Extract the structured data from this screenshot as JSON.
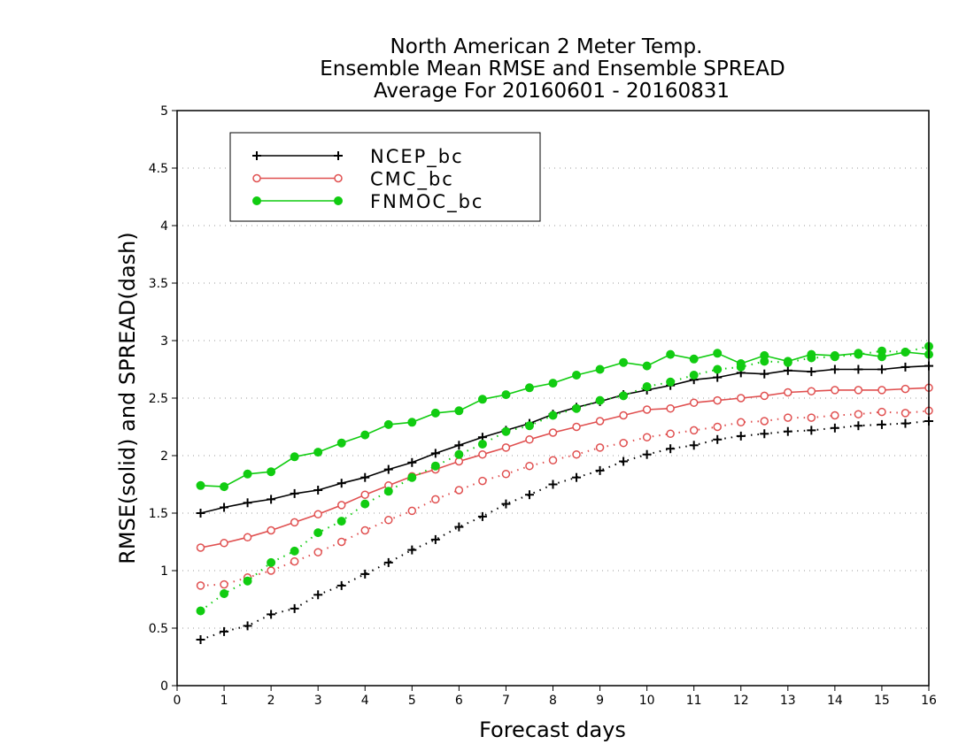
{
  "chart_data": {
    "type": "line",
    "title": [
      "North American 2 Meter Temp.",
      "Ensemble Mean RMSE and Ensemble SPREAD",
      "Average For 20160601 - 20160831"
    ],
    "xlabel": "Forecast days",
    "ylabel": "RMSE(solid) and SPREAD(dash)",
    "xlim": [
      0,
      16
    ],
    "ylim": [
      0,
      5
    ],
    "xticks": [
      "0",
      "1",
      "2",
      "3",
      "4",
      "5",
      "6",
      "7",
      "8",
      "9",
      "10",
      "11",
      "12",
      "13",
      "14",
      "15",
      "16"
    ],
    "yticks": [
      "0",
      "0.5",
      "1",
      "1.5",
      "2",
      "2.5",
      "3",
      "3.5",
      "4",
      "4.5",
      "5"
    ],
    "grid": "horizontal dotted",
    "legend_position": "top-left",
    "x": [
      0.5,
      1,
      1.5,
      2,
      2.5,
      3,
      3.5,
      4,
      4.5,
      5,
      5.5,
      6,
      6.5,
      7,
      7.5,
      8,
      8.5,
      9,
      9.5,
      10,
      10.5,
      11,
      11.5,
      12,
      12.5,
      13,
      13.5,
      14,
      14.5,
      15,
      15.5,
      16
    ],
    "series": [
      {
        "name": "NCEP_bc",
        "color": "#000000",
        "marker": "plus",
        "rmse": [
          1.5,
          1.55,
          1.59,
          1.62,
          1.67,
          1.7,
          1.76,
          1.81,
          1.88,
          1.94,
          2.02,
          2.09,
          2.16,
          2.22,
          2.28,
          2.36,
          2.42,
          2.47,
          2.53,
          2.57,
          2.61,
          2.66,
          2.68,
          2.72,
          2.71,
          2.74,
          2.73,
          2.75,
          2.75,
          2.75,
          2.77,
          2.78
        ],
        "spread": [
          0.4,
          0.47,
          0.52,
          0.62,
          0.67,
          0.79,
          0.87,
          0.97,
          1.07,
          1.18,
          1.27,
          1.38,
          1.47,
          1.58,
          1.66,
          1.75,
          1.81,
          1.87,
          1.95,
          2.01,
          2.06,
          2.09,
          2.14,
          2.17,
          2.19,
          2.21,
          2.22,
          2.24,
          2.26,
          2.27,
          2.28,
          2.3
        ]
      },
      {
        "name": "CMC_bc",
        "color": "#e05050",
        "marker": "open-circle",
        "rmse": [
          1.2,
          1.24,
          1.29,
          1.35,
          1.42,
          1.49,
          1.57,
          1.66,
          1.74,
          1.82,
          1.88,
          1.95,
          2.01,
          2.07,
          2.14,
          2.2,
          2.25,
          2.3,
          2.35,
          2.4,
          2.41,
          2.46,
          2.48,
          2.5,
          2.52,
          2.55,
          2.56,
          2.57,
          2.57,
          2.57,
          2.58,
          2.59
        ],
        "spread": [
          0.87,
          0.88,
          0.94,
          1.0,
          1.08,
          1.16,
          1.25,
          1.35,
          1.44,
          1.52,
          1.62,
          1.7,
          1.78,
          1.84,
          1.91,
          1.96,
          2.01,
          2.07,
          2.11,
          2.16,
          2.19,
          2.22,
          2.25,
          2.29,
          2.3,
          2.33,
          2.33,
          2.35,
          2.36,
          2.38,
          2.37,
          2.39
        ]
      },
      {
        "name": "FNMOC_bc",
        "color": "#11cc11",
        "marker": "filled-circle",
        "rmse": [
          1.74,
          1.73,
          1.84,
          1.86,
          1.99,
          2.03,
          2.11,
          2.18,
          2.27,
          2.29,
          2.37,
          2.39,
          2.49,
          2.53,
          2.59,
          2.63,
          2.7,
          2.75,
          2.81,
          2.78,
          2.88,
          2.84,
          2.89,
          2.8,
          2.87,
          2.82,
          2.88,
          2.87,
          2.89,
          2.86,
          2.9,
          2.88
        ],
        "spread": [
          0.65,
          0.8,
          0.91,
          1.07,
          1.17,
          1.33,
          1.43,
          1.58,
          1.69,
          1.81,
          1.91,
          2.01,
          2.1,
          2.21,
          2.26,
          2.35,
          2.41,
          2.48,
          2.52,
          2.6,
          2.64,
          2.7,
          2.75,
          2.77,
          2.82,
          2.81,
          2.85,
          2.86,
          2.88,
          2.91,
          2.9,
          2.95
        ]
      }
    ]
  }
}
